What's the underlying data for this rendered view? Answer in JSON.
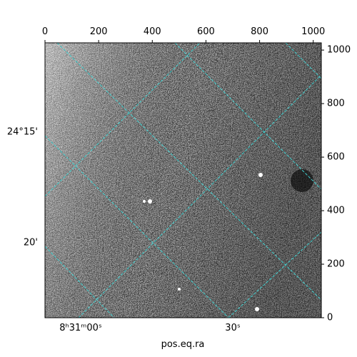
{
  "chart_data": {
    "type": "image",
    "xlabel": "pos.eq.ra",
    "xlim": [
      0,
      1030
    ],
    "ylim": [
      0,
      1027
    ],
    "xticks": [
      0,
      200,
      400,
      600,
      800,
      1000
    ],
    "yticks": [
      0,
      200,
      400,
      600,
      800,
      1000
    ],
    "dec_labels": [
      "24°15'",
      "20'"
    ],
    "ra_labels": [
      "8ʰ31ᵐ00ˢ",
      "30ˢ"
    ],
    "grid_color": "#40d0d0"
  }
}
